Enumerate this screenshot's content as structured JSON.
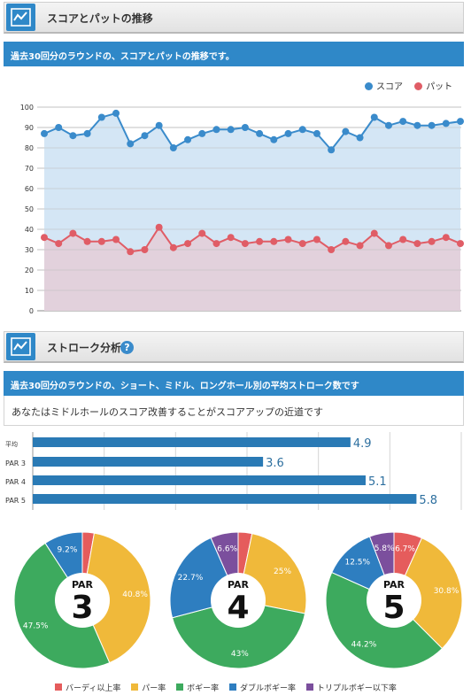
{
  "section1": {
    "title": "スコアとパットの推移",
    "description": "過去30回分のラウンドの、スコアとパットの推移です。",
    "icon": "line-chart-icon"
  },
  "section2": {
    "title": "ストローク分析",
    "description": "過去30回分のラウンドの、ショート、ミドル、ロングホール別の平均ストローク数です",
    "advice": "あなたはミドルホールのスコア改善することがスコアアップの近道です",
    "icon": "line-chart-icon",
    "help_icon": "?"
  },
  "colors": {
    "score": "#3a8bcb",
    "putt": "#e05d66",
    "bar": "#2a7ab5",
    "birdie": "#e55c5c",
    "par": "#f0b93a",
    "bogey": "#3daa5e",
    "double": "#2e7ec0",
    "triple": "#7b4f9d"
  },
  "chart_data": [
    {
      "type": "area",
      "legend": [
        "スコア",
        "パット"
      ],
      "legend_position": "top-right",
      "ylim": [
        0,
        100
      ],
      "yticks": [
        "0",
        "10",
        "20",
        "30",
        "40",
        "50",
        "60",
        "70",
        "80",
        "90",
        "100"
      ],
      "grid": true,
      "series": [
        {
          "name": "スコア",
          "values": [
            87,
            90,
            86,
            87,
            95,
            97,
            82,
            86,
            91,
            80,
            84,
            87,
            89,
            89,
            90,
            87,
            84,
            87,
            89,
            87,
            79,
            88,
            85,
            95,
            91,
            93,
            91,
            91,
            92,
            93
          ]
        },
        {
          "name": "パット",
          "values": [
            36,
            33,
            38,
            34,
            34,
            35,
            29,
            30,
            41,
            31,
            33,
            38,
            33,
            36,
            33,
            34,
            34,
            35,
            33,
            35,
            30,
            34,
            32,
            38,
            32,
            35,
            33,
            34,
            36,
            33
          ]
        }
      ]
    },
    {
      "type": "bar",
      "orientation": "horizontal",
      "categories": [
        "平均",
        "PAR 3",
        "PAR 4",
        "PAR 5"
      ],
      "values": [
        4.9,
        3.6,
        5.1,
        5.8
      ],
      "value_labels": [
        "4.9",
        "3.6",
        "5.1",
        "5.8"
      ],
      "xlim": [
        0,
        6
      ],
      "grid": true
    },
    {
      "type": "pie",
      "center_label": "PAR",
      "center_number": "3",
      "categories": [
        "バーディ以上率",
        "パー率",
        "ボギー率",
        "ダブルボギー率",
        "トリプルボギー以下率"
      ],
      "values": [
        2.8,
        40.8,
        47.5,
        9.2,
        0
      ],
      "labels": [
        "",
        "40.8%",
        "47.5%",
        "9.2%",
        ""
      ]
    },
    {
      "type": "pie",
      "center_label": "PAR",
      "center_number": "4",
      "categories": [
        "バーディ以上率",
        "パー率",
        "ボギー率",
        "ダブルボギー率",
        "トリプルボギー以下率"
      ],
      "values": [
        3.3,
        25,
        43,
        22.7,
        6.6
      ],
      "labels": [
        "",
        "25%",
        "43%",
        "22.7%",
        "6.6%"
      ]
    },
    {
      "type": "pie",
      "center_label": "PAR",
      "center_number": "5",
      "categories": [
        "バーディ以上率",
        "パー率",
        "ボギー率",
        "ダブルボギー率",
        "トリプルボギー以下率"
      ],
      "values": [
        6.7,
        30.8,
        44.2,
        12.5,
        5.8
      ],
      "labels": [
        "6.7%",
        "30.8%",
        "44.2%",
        "12.5%",
        "5.8%"
      ]
    }
  ],
  "legend_bottom": [
    "バーディ以上率",
    "パー率",
    "ボギー率",
    "ダブルボギー率",
    "トリプルボギー以下率"
  ]
}
